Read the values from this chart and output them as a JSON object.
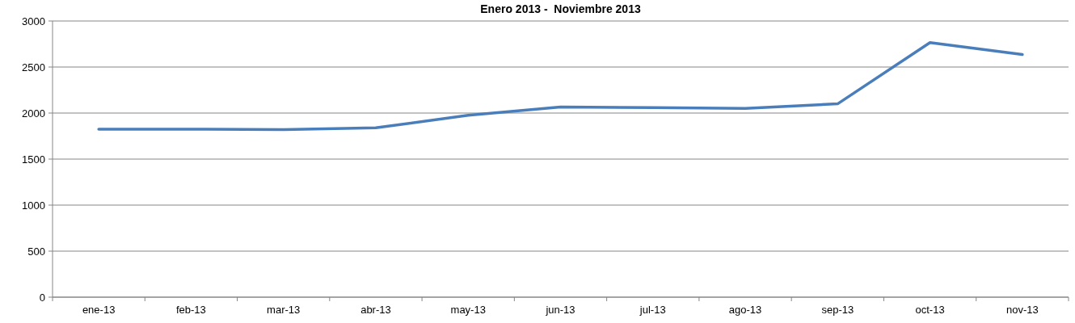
{
  "chart_data": {
    "type": "line",
    "title": "Enero 2013 -  Noviembre 2013",
    "categories": [
      "ene-13",
      "feb-13",
      "mar-13",
      "abr-13",
      "may-13",
      "jun-13",
      "jul-13",
      "ago-13",
      "sep-13",
      "oct-13",
      "nov-13"
    ],
    "series": [
      {
        "color": "#4a7ebb",
        "values": [
          1825,
          1825,
          1820,
          1840,
          1975,
          2065,
          2060,
          2050,
          2100,
          2765,
          2635
        ]
      }
    ],
    "ylim": [
      0,
      3000
    ],
    "yticks": [
      0,
      500,
      1000,
      1500,
      2000,
      2500,
      3000
    ],
    "grid": "y",
    "marker": "none",
    "line_style": "solid"
  }
}
